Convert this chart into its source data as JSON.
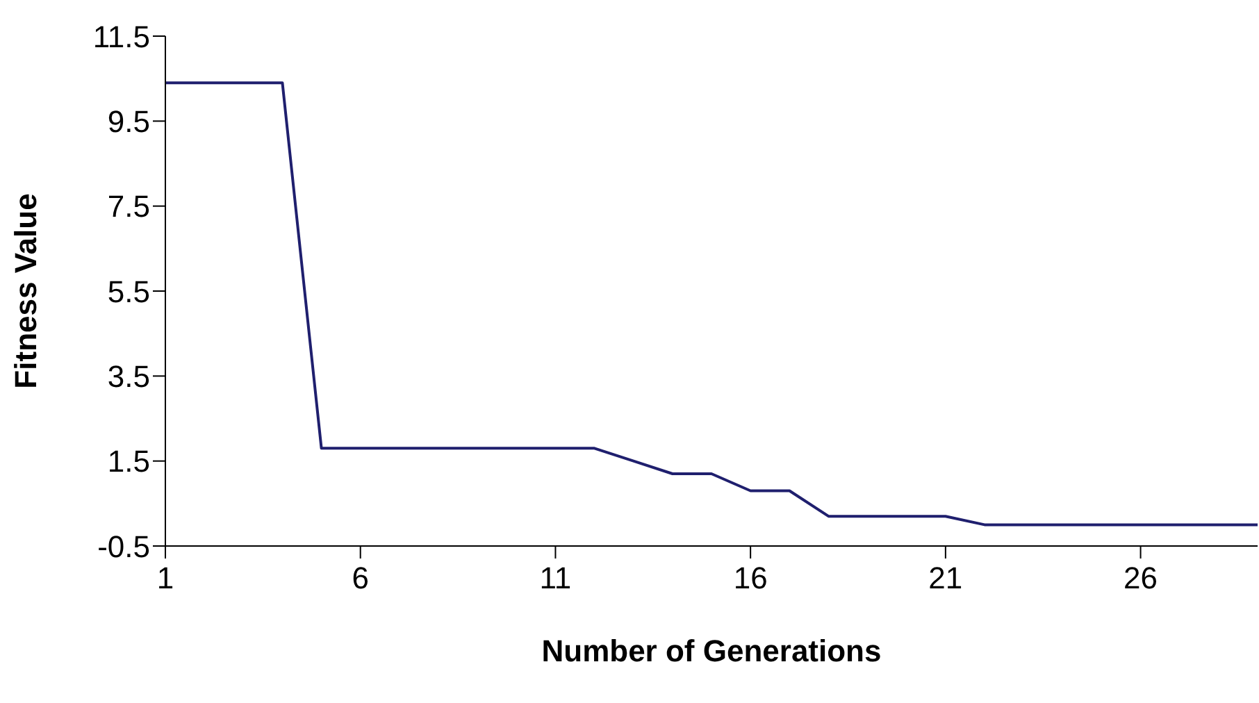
{
  "chart_data": {
    "type": "line",
    "xlabel": "Number of Generations",
    "ylabel": "Fitness Value",
    "x": [
      1,
      2,
      3,
      4,
      5,
      6,
      7,
      8,
      9,
      10,
      11,
      12,
      13,
      14,
      15,
      16,
      17,
      18,
      19,
      20,
      21,
      22,
      23,
      24,
      25,
      26,
      27,
      28,
      29
    ],
    "series": [
      {
        "color": "#1f1f6e",
        "values": [
          10.4,
          10.4,
          10.4,
          10.4,
          1.8,
          1.8,
          1.8,
          1.8,
          1.8,
          1.8,
          1.8,
          1.8,
          1.5,
          1.2,
          1.2,
          0.8,
          0.8,
          0.2,
          0.2,
          0.2,
          0.2,
          0.0,
          0.0,
          0.0,
          0.0,
          0.0,
          0.0,
          0.0,
          0.0
        ]
      }
    ],
    "xlim": [
      1,
      29
    ],
    "xticks": [
      1,
      6,
      11,
      16,
      21,
      26
    ],
    "ylim": [
      -0.5,
      11.5
    ],
    "yticks": [
      -0.5,
      1.5,
      3.5,
      5.5,
      7.5,
      9.5,
      11.5
    ],
    "grid": false,
    "legend": false,
    "marker": "none",
    "line_style": "solid"
  }
}
